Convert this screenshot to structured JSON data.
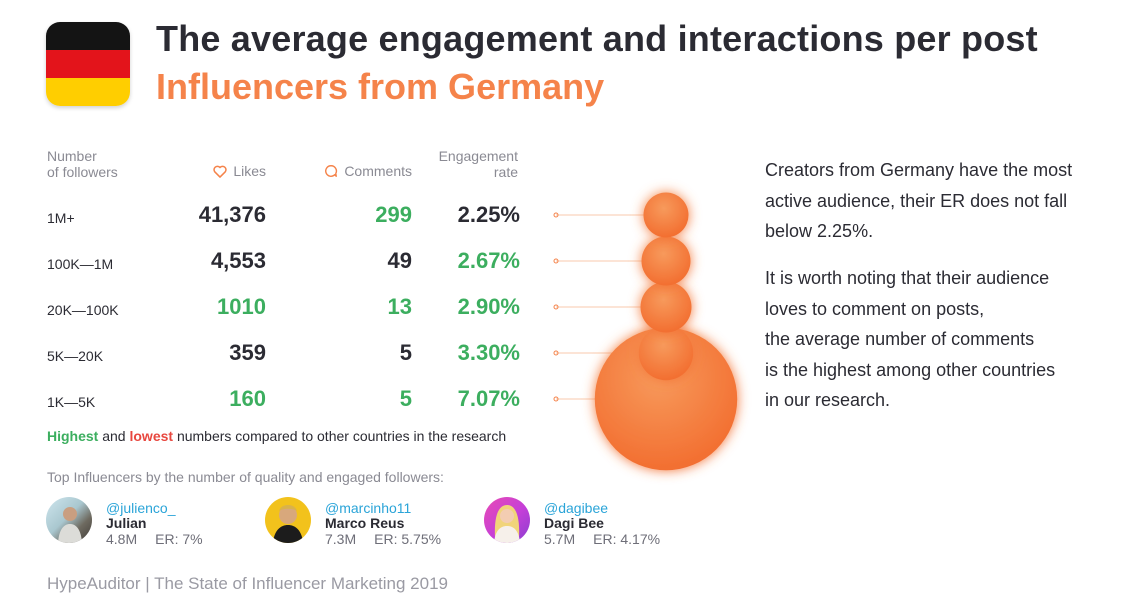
{
  "header": {
    "title": "The average engagement and interactions per post",
    "subtitle": "Influencers from Germany"
  },
  "colors": {
    "orange": "#f5834a",
    "green": "#3cae5f",
    "red": "#e8473f",
    "dark": "#2b2b33",
    "flag_black": "#141414",
    "flag_red": "#e3141b",
    "flag_gold": "#ffce00"
  },
  "chart_data": {
    "type": "table",
    "columns": {
      "followers": "Number\nof followers",
      "likes": "Likes",
      "comments": "Comments",
      "engagement_rate": "Engagement\nrate"
    },
    "rows": [
      {
        "followers": "1M+",
        "likes": "41,376",
        "likes_highlight": "none",
        "comments": "299",
        "comments_highlight": "highest",
        "er": "2.25%",
        "er_value": 2.25,
        "er_highlight": "none"
      },
      {
        "followers": "100K—1M",
        "likes": "4,553",
        "likes_highlight": "none",
        "comments": "49",
        "comments_highlight": "none",
        "er": "2.67%",
        "er_value": 2.67,
        "er_highlight": "highest"
      },
      {
        "followers": "20K—100K",
        "likes": "1010",
        "likes_highlight": "highest",
        "comments": "13",
        "comments_highlight": "highest",
        "er": "2.90%",
        "er_value": 2.9,
        "er_highlight": "highest"
      },
      {
        "followers": "5K—20K",
        "likes": "359",
        "likes_highlight": "none",
        "comments": "5",
        "comments_highlight": "none",
        "er": "3.30%",
        "er_value": 3.3,
        "er_highlight": "highest"
      },
      {
        "followers": "1K—5K",
        "likes": "160",
        "likes_highlight": "highest",
        "comments": "5",
        "comments_highlight": "highest",
        "er": "7.07%",
        "er_value": 7.07,
        "er_highlight": "highest"
      }
    ]
  },
  "legend": {
    "highest": "Highest",
    "and": " and ",
    "lowest": "lowest",
    "rest": " numbers compared to other countries in the research"
  },
  "description": {
    "p1": "Creators from Germany have the most active audience, their ER does not fall below 2.25%.",
    "p2_lines": [
      "It is worth noting that their audience",
      "loves to comment on posts,",
      "the average number of comments",
      "is the highest among other countries",
      "in our research."
    ]
  },
  "top_influencers": {
    "title": "Top Influencers by the number of quality and engaged followers:",
    "items": [
      {
        "handle": "@julienco_",
        "name": "Julian",
        "followers": "4.8M",
        "er": "ER: 7%"
      },
      {
        "handle": "@marcinho11",
        "name": "Marco Reus",
        "followers": "7.3M",
        "er": "ER: 5.75%"
      },
      {
        "handle": "@dagibee",
        "name": "Dagi Bee",
        "followers": "5.7M",
        "er": "ER: 4.17%"
      }
    ]
  },
  "footer": "HypeAuditor | The State of Influencer Marketing 2019"
}
